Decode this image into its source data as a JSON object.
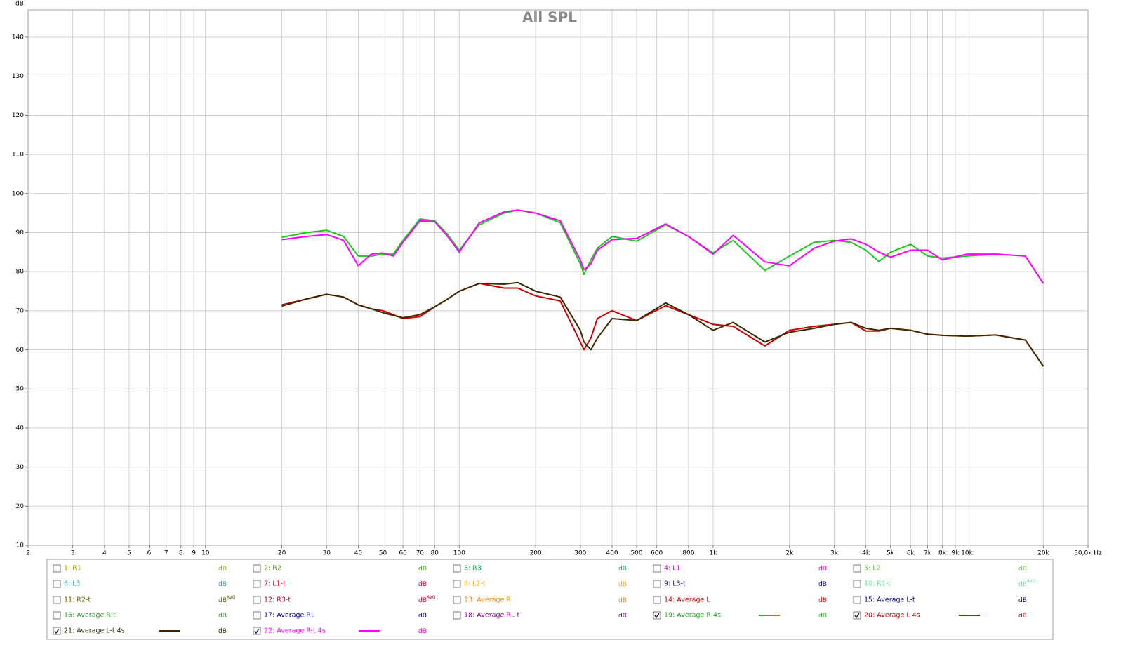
{
  "chart_data": {
    "type": "line",
    "title": "All SPL",
    "y_label": "dB",
    "x_scale": "log",
    "grid": true,
    "xlim": [
      2,
      30000
    ],
    "ylim": [
      10,
      147
    ],
    "xticks": [
      2,
      3,
      4,
      5,
      6,
      7,
      8,
      9,
      10,
      20,
      30,
      40,
      50,
      60,
      70,
      80,
      100,
      200,
      300,
      400,
      500,
      600,
      800,
      {
        "value": 1000,
        "label": "1k"
      },
      {
        "value": 2000,
        "label": "2k"
      },
      {
        "value": 3000,
        "label": "3k"
      },
      {
        "value": 4000,
        "label": "4k"
      },
      {
        "value": 5000,
        "label": "5k"
      },
      {
        "value": 6000,
        "label": "6k"
      },
      {
        "value": 7000,
        "label": "7k"
      },
      {
        "value": 8000,
        "label": "8k"
      },
      {
        "value": 9000,
        "label": "9k"
      },
      {
        "value": 10000,
        "label": "10k"
      },
      {
        "value": 20000,
        "label": "20k"
      },
      {
        "value": 30000,
        "label": "30,0k Hz"
      }
    ],
    "yticks": [
      10,
      20,
      30,
      40,
      50,
      60,
      70,
      80,
      90,
      100,
      110,
      120,
      130,
      140
    ],
    "x": [
      20,
      25,
      30,
      35,
      40,
      45,
      50,
      55,
      60,
      70,
      80,
      90,
      100,
      120,
      150,
      170,
      200,
      250,
      300,
      310,
      330,
      350,
      400,
      500,
      650,
      800,
      1000,
      1200,
      1600,
      2000,
      2500,
      3000,
      3500,
      4000,
      4500,
      5000,
      6000,
      7000,
      8000,
      10000,
      13000,
      17000,
      20000
    ],
    "series": [
      {
        "color": "#1ec81e",
        "values": [
          88.8,
          90,
          90.6,
          89,
          84,
          84,
          84.5,
          84.5,
          88,
          93.5,
          93,
          89.5,
          85.5,
          92,
          95,
          95.8,
          95,
          92.5,
          82,
          79.3,
          83,
          86,
          89,
          87.8,
          92,
          89,
          84.8,
          88,
          80.3,
          84,
          87.5,
          88,
          87.5,
          85.5,
          82.6,
          85,
          87,
          84,
          83.5,
          84,
          84.5,
          84,
          77
        ]
      },
      {
        "color": "#d00000",
        "values": [
          71.5,
          73,
          74.2,
          73.5,
          71.5,
          70.5,
          70,
          69,
          68,
          68.5,
          71,
          73,
          75,
          77,
          75.8,
          75.8,
          73.8,
          72.5,
          62,
          60,
          63,
          68,
          70,
          67.5,
          71.3,
          69,
          66.5,
          66,
          61,
          65,
          66,
          66.5,
          67,
          64.8,
          64.8,
          65.5,
          65,
          64,
          63.7,
          63.5,
          63.8,
          62.5,
          55.8
        ]
      },
      {
        "color": "#3b2a00",
        "values": [
          71.2,
          73,
          74.2,
          73.5,
          71.5,
          70.5,
          69.5,
          68.8,
          68.2,
          69,
          71,
          73,
          75,
          77,
          76.8,
          77.2,
          75,
          73.5,
          65,
          62,
          60,
          63,
          68,
          67.5,
          72,
          69,
          65,
          67,
          62,
          64.5,
          65.5,
          66.5,
          67,
          65.5,
          65,
          65.5,
          65,
          64,
          63.7,
          63.5,
          63.8,
          62.5,
          55.8
        ]
      },
      {
        "color": "#ff00ff",
        "values": [
          88.2,
          89,
          89.5,
          88,
          81.5,
          84.5,
          84.8,
          84,
          87.5,
          93,
          92.8,
          89,
          85,
          92.5,
          95.3,
          95.8,
          95,
          93,
          83,
          80.5,
          82,
          85.5,
          88.2,
          88.5,
          92.2,
          89,
          84.5,
          89.3,
          82.5,
          81.5,
          86,
          87.8,
          88.4,
          87,
          85,
          83.7,
          85.5,
          85.5,
          83,
          84.5,
          84.5,
          84,
          77
        ]
      }
    ]
  },
  "measurements": [
    {
      "label": "1: R1",
      "checked": false,
      "color": "#a0a000",
      "unit": "dB"
    },
    {
      "label": "2: R2",
      "checked": false,
      "color": "#3a9a00",
      "unit": "dB"
    },
    {
      "label": "3: R3",
      "checked": false,
      "color": "#00b050",
      "unit": "dB"
    },
    {
      "label": "4: L1",
      "checked": false,
      "color": "#cc00cc",
      "unit": "dB"
    },
    {
      "label": "5: L2",
      "checked": false,
      "color": "#66cc33",
      "unit": "dB"
    },
    {
      "label": "6: L3",
      "checked": false,
      "color": "#3399cc",
      "unit": "dB"
    },
    {
      "label": "7: L1-t",
      "checked": false,
      "color": "#ee0033",
      "unit": "dB"
    },
    {
      "label": "8: L2-t",
      "checked": false,
      "color": "#ffaa00",
      "unit": "dB"
    },
    {
      "label": "9: L3-t",
      "checked": false,
      "color": "#0000cc",
      "unit": "dB"
    },
    {
      "label": "10: R1-t",
      "checked": false,
      "color": "#66dd99",
      "unit": "dB",
      "unit_sup": "AVG"
    },
    {
      "label": "11: R2-t",
      "checked": false,
      "color": "#666600",
      "unit": "dB",
      "unit_sup": "AVG"
    },
    {
      "label": "12: R3-t",
      "checked": false,
      "color": "#cc0033",
      "unit": "dB",
      "unit_sup": "AVG"
    },
    {
      "label": "13: Average R",
      "checked": false,
      "color": "#ff8800",
      "unit": "dB"
    },
    {
      "label": "14: Average L",
      "checked": false,
      "color": "#cc0000",
      "unit": "dB"
    },
    {
      "label": "15: Average L-t",
      "checked": false,
      "color": "#000088",
      "unit": "dB"
    },
    {
      "label": "16: Average R-t",
      "checked": false,
      "color": "#339933",
      "unit": "dB"
    },
    {
      "label": "17: Average RL",
      "checked": false,
      "color": "#0000aa",
      "unit": "dB"
    },
    {
      "label": "18: Average RL-t",
      "checked": false,
      "color": "#990099",
      "unit": "dB"
    },
    {
      "label": "19: Average R 4s",
      "checked": true,
      "color": "#22aa22",
      "unit": "dB"
    },
    {
      "label": "20: Average L 4s",
      "checked": true,
      "color": "#cc0000",
      "unit": "dB"
    },
    {
      "label": "21: Average L-t 4s",
      "checked": true,
      "color": "#333300",
      "unit": "dB"
    },
    {
      "label": "22: Average R-t 4s",
      "checked": true,
      "color": "#ff00ff",
      "unit": "dB"
    }
  ]
}
